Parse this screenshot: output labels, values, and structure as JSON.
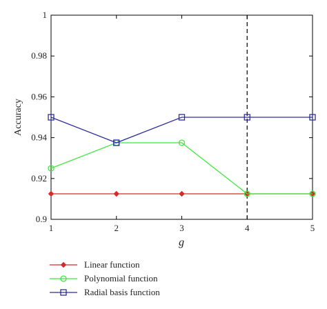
{
  "chart_data": {
    "type": "line",
    "title": "",
    "xlabel": "g",
    "ylabel": "Accuracy",
    "x": [
      1,
      2,
      3,
      4,
      5
    ],
    "xlim": [
      1,
      5
    ],
    "ylim": [
      0.9,
      1
    ],
    "xticks": [
      "1",
      "2",
      "3",
      "4",
      "5"
    ],
    "yticks": [
      "0.9",
      "0.92",
      "0.94",
      "0.96",
      "0.98",
      "1"
    ],
    "grid": false,
    "legend_position": "bottom",
    "vertical_reference_line": {
      "x": 4,
      "style": "dashed",
      "color": "#000000"
    },
    "series": [
      {
        "name": "Linear function",
        "values": [
          0.9125,
          0.9125,
          0.9125,
          0.9125,
          0.9125
        ],
        "color": "#d62a2a",
        "marker": "diamond"
      },
      {
        "name": "Polynomial function",
        "values": [
          0.925,
          0.9375,
          0.9375,
          0.9125,
          0.9125
        ],
        "color": "#3ee83e",
        "marker": "circle"
      },
      {
        "name": "Radial basis function",
        "values": [
          0.95,
          0.9375,
          0.95,
          0.95,
          0.95
        ],
        "color": "#2c2c9e",
        "marker": "square"
      }
    ]
  }
}
